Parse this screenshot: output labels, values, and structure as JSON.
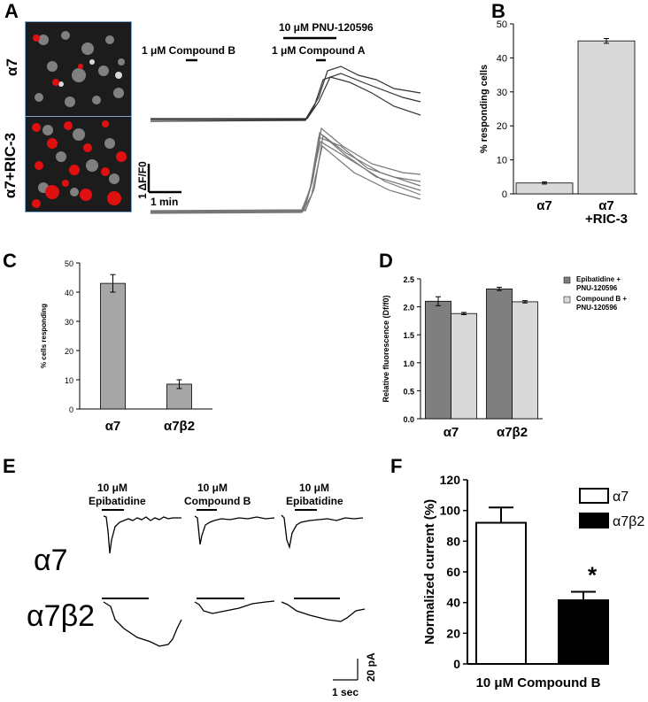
{
  "panels": {
    "A": {
      "label": "A",
      "row_labels": [
        "α7",
        "α7+RIC-3"
      ],
      "drug_labels": {
        "pnu": "10 μM PNU-120596",
        "compound_b": "1 μM Compound B",
        "compound_a": "1 μM Compound A"
      },
      "scalebar": {
        "y_label": "1 ΔF/F0",
        "x_label": "1 min"
      }
    },
    "B": {
      "label": "B",
      "chart_data": {
        "type": "bar",
        "categories": [
          "α7",
          "α7\n+RIC-3"
        ],
        "values": [
          3.2,
          45
        ],
        "errors": [
          0.3,
          0.7
        ],
        "ylabel": "% responding cells",
        "ylim": [
          0,
          50
        ],
        "yticks": [
          0,
          10,
          20,
          30,
          40,
          50
        ],
        "bar_color": "#d9d9d9"
      }
    },
    "C": {
      "label": "C",
      "chart_data": {
        "type": "bar",
        "categories": [
          "α7",
          "α7β2"
        ],
        "values": [
          43,
          8.5
        ],
        "errors": [
          3,
          1.5
        ],
        "ylabel": "% cells responding",
        "ylim": [
          0,
          50
        ],
        "yticks": [
          0,
          10,
          20,
          30,
          40,
          50
        ],
        "bar_color": "#a6a6a6"
      }
    },
    "D": {
      "label": "D",
      "chart_data": {
        "type": "bar",
        "categories": [
          "α7",
          "α7β2"
        ],
        "series": [
          {
            "name": "Epibatidine + PNU-120596",
            "values": [
              2.1,
              2.32
            ],
            "errors": [
              0.08,
              0.03
            ],
            "color": "#7f7f7f"
          },
          {
            "name": "Compound B + PNU-120596",
            "values": [
              1.88,
              2.09
            ],
            "errors": [
              0.02,
              0.02
            ],
            "color": "#d9d9d9"
          }
        ],
        "ylabel": "Relative fluorescence (Df/f0)",
        "ylim": [
          0,
          2.5
        ],
        "yticks": [
          "0.0",
          "0.5",
          "1.0",
          "1.5",
          "2.0",
          "2.5"
        ],
        "legend_position": "top-right"
      }
    },
    "E": {
      "label": "E",
      "drug_labels": [
        {
          "line1": "10 μM",
          "line2": "Epibatidine"
        },
        {
          "line1": "10 μM",
          "line2": "Compound B"
        },
        {
          "line1": "10 μM",
          "line2": "Epibatidine"
        }
      ],
      "row_labels": [
        "α7",
        "α7β2"
      ],
      "scalebar": {
        "y_label": "20 pA",
        "x_label": "1 sec"
      }
    },
    "F": {
      "label": "F",
      "chart_data": {
        "type": "bar",
        "series": [
          {
            "name": "α7",
            "value": 92,
            "error": 10,
            "color": "#ffffff"
          },
          {
            "name": "α7β2",
            "value": 41.5,
            "error": 5.5,
            "color": "#000000"
          }
        ],
        "xlabel": "10 μM Compound  B",
        "ylabel": "Normalized current (%)",
        "ylim": [
          0,
          120
        ],
        "yticks": [
          0,
          20,
          40,
          60,
          80,
          100,
          120
        ],
        "significance": "*",
        "legend_position": "top-right"
      }
    }
  }
}
